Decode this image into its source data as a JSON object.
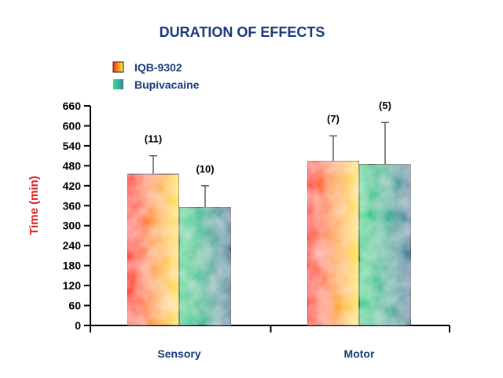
{
  "chart_data": {
    "type": "bar",
    "title": "DURATION OF EFFECTS",
    "ylabel": "Time (min)",
    "xlabel": "",
    "ylim": [
      0,
      660
    ],
    "yticks": [
      0,
      60,
      120,
      180,
      240,
      300,
      360,
      420,
      480,
      540,
      600,
      660
    ],
    "categories": [
      "Sensory",
      "Motor"
    ],
    "legend_position": "top-left",
    "grid": false,
    "series": [
      {
        "name": "IQB-9302",
        "values": [
          455,
          495
        ],
        "error": [
          55,
          75
        ],
        "n_labels": [
          "(11)",
          "(7)"
        ],
        "colors": [
          "#ff2a10",
          "#ff9a20",
          "#ffe840"
        ]
      },
      {
        "name": "Bupivacaine",
        "values": [
          355,
          485
        ],
        "error": [
          65,
          125
        ],
        "n_labels": [
          "(10)",
          "(5)"
        ],
        "colors": [
          "#30d890",
          "#38b898",
          "#3a7aa0"
        ]
      }
    ]
  }
}
